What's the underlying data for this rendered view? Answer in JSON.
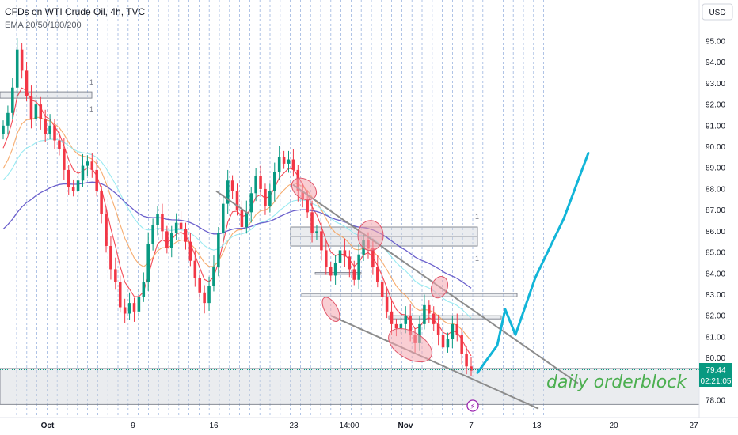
{
  "header": {
    "title": "CFDs on WTI Crude Oil, 4h, TVC",
    "indicator": "EMA 20/50/100/200",
    "currency": "USD"
  },
  "price_tag": {
    "price": "79.44",
    "countdown": "02:21:05",
    "color": "#089981"
  },
  "colors": {
    "up": "#089981",
    "down": "#f23645",
    "ema20": "#f23645",
    "ema50": "#f5a25d",
    "ema100": "#8de8f0",
    "ema200": "#5b4fc6",
    "trendline": "#8c8c8c",
    "projection": "#12b5d8",
    "annotation": "#4caf50",
    "ellipse_fill": "#f4a6ae",
    "ellipse_stroke": "#e0566a",
    "grid": "#7a9bd6"
  },
  "annotations": {
    "orderblock_label": "daily orderblock",
    "zone_labels": [
      "1",
      "1",
      "1",
      "1"
    ]
  },
  "chart_data": {
    "type": "candlestick",
    "y_axis": {
      "ticks": [
        78.0,
        79.0,
        80.0,
        81.0,
        82.0,
        83.0,
        84.0,
        85.0,
        86.0,
        87.0,
        88.0,
        89.0,
        90.0,
        91.0,
        92.0,
        93.0,
        94.0,
        95.0
      ],
      "range": [
        77.5,
        96.5
      ]
    },
    "x_axis": {
      "ticks": [
        "Oct",
        "9",
        "16",
        "23",
        "14:00",
        "Nov",
        "7",
        "13",
        "20",
        "27"
      ]
    },
    "close_series": [
      91.0,
      91.6,
      92.8,
      94.6,
      93.6,
      92.4,
      91.3,
      92.0,
      91.3,
      90.6,
      91.0,
      90.3,
      89.9,
      88.9,
      88.1,
      87.9,
      88.4,
      89.1,
      89.3,
      88.9,
      87.9,
      86.8,
      85.3,
      84.2,
      83.6,
      82.4,
      82.1,
      82.6,
      82.2,
      82.9,
      83.6,
      85.4,
      86.3,
      86.8,
      86.0,
      85.2,
      85.9,
      86.4,
      86.1,
      85.5,
      84.6,
      83.8,
      83.1,
      82.6,
      83.4,
      84.3,
      85.9,
      87.3,
      88.4,
      87.9,
      87.0,
      86.2,
      86.9,
      87.8,
      88.6,
      88.0,
      87.2,
      87.9,
      88.8,
      89.5,
      89.2,
      89.4,
      88.9,
      87.9,
      87.5,
      86.9,
      85.9,
      86.0,
      85.1,
      84.3,
      83.9,
      84.5,
      85.1,
      84.8,
      84.2,
      83.7,
      84.9,
      85.6,
      85.2,
      84.3,
      83.6,
      82.9,
      82.2,
      81.6,
      81.4,
      81.6,
      82.0,
      81.1,
      80.7,
      81.6,
      82.5,
      82.1,
      81.6,
      81.1,
      80.5,
      80.9,
      81.6,
      81.1,
      80.2,
      79.6,
      79.4
    ],
    "ema": [
      {
        "name": "EMA 20",
        "start": 89.4,
        "end": 81.0
      },
      {
        "name": "EMA 50",
        "start": 88.6,
        "end": 82.3
      },
      {
        "name": "EMA 100",
        "start": 88.2,
        "end": 83.8
      },
      {
        "name": "EMA 200",
        "start": 85.9,
        "end": 84.9
      }
    ],
    "zones": [
      {
        "name": "supply-zone-october",
        "ymin": 92.3,
        "ymax": 92.6
      },
      {
        "name": "supply-zone-86",
        "ymin": 85.3,
        "ymax": 86.2
      },
      {
        "name": "level-83",
        "ymin": 82.9,
        "ymax": 83.05
      },
      {
        "name": "level-82",
        "ymin": 81.85,
        "ymax": 82.0
      },
      {
        "name": "daily-orderblock",
        "ymin": 77.8,
        "ymax": 79.5
      }
    ],
    "projection": [
      79.3,
      80.6,
      82.3,
      81.1,
      83.8,
      86.6,
      89.7
    ],
    "current_price": 79.44
  }
}
